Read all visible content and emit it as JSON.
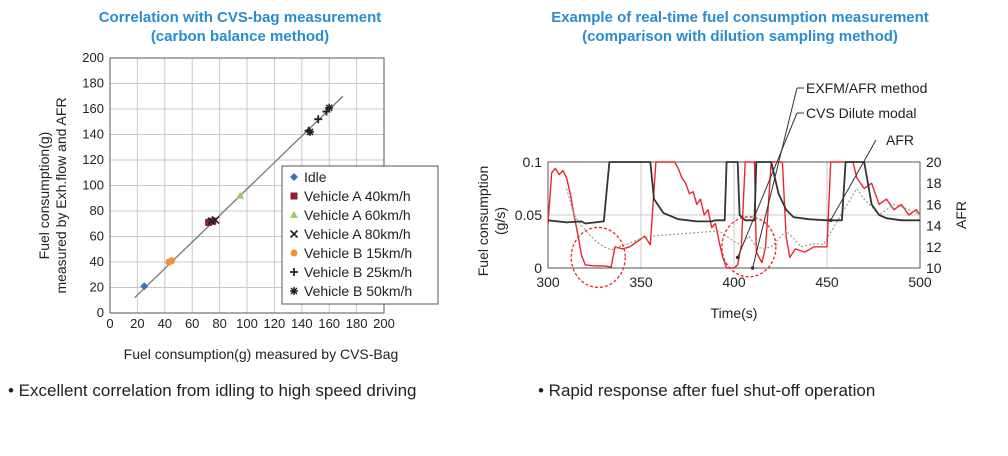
{
  "chart_data": [
    {
      "type": "scatter",
      "title_line1": "Correlation with CVS-bag measurement",
      "title_line2": "(carbon balance method)",
      "xlabel": "Fuel consumption(g) measured by CVS-Bag",
      "ylabel_line1": "Fuel consumption(g)",
      "ylabel_line2": "measured by Exh.flow and AFR",
      "xlim": [
        0,
        200
      ],
      "ylim": [
        0,
        200
      ],
      "xticks": [
        0,
        20,
        40,
        60,
        80,
        100,
        120,
        140,
        160,
        180,
        200
      ],
      "yticks": [
        0,
        20,
        40,
        60,
        80,
        100,
        120,
        140,
        160,
        180,
        200
      ],
      "grid": true,
      "legend_position": "bottom-right",
      "fit_line": [
        [
          18,
          12
        ],
        [
          170,
          170
        ]
      ],
      "series": [
        {
          "name": "Idle",
          "marker": "diamond",
          "color": "#3a6fc4",
          "points": [
            [
              25,
              21
            ]
          ]
        },
        {
          "name": "Vehicle A 40km/h",
          "marker": "square",
          "color": "#8b2230",
          "points": [
            [
              72,
              71
            ],
            [
              75,
              72
            ]
          ]
        },
        {
          "name": "Vehicle A 60km/h",
          "marker": "triangle",
          "color": "#9ccb6b",
          "points": [
            [
              95,
              92
            ]
          ]
        },
        {
          "name": "Vehicle A 80km/h",
          "marker": "x",
          "color": "#222222",
          "points": [
            [
              74,
              72
            ],
            [
              77,
              73
            ]
          ]
        },
        {
          "name": "Vehicle B 15km/h",
          "marker": "circle",
          "color": "#f0913a",
          "points": [
            [
              43,
              40
            ],
            [
              45,
              41
            ]
          ]
        },
        {
          "name": "Vehicle B 25km/h",
          "marker": "plus",
          "color": "#222222",
          "points": [
            [
              145,
              143
            ],
            [
              152,
              152
            ],
            [
              158,
              158
            ]
          ]
        },
        {
          "name": "Vehicle B 50km/h",
          "marker": "star",
          "color": "#222222",
          "points": [
            [
              146,
              142
            ],
            [
              160,
              161
            ]
          ]
        }
      ]
    },
    {
      "type": "line",
      "title_line1": "Example of real-time fuel consumption measurement",
      "title_line2": "(comparison with dilution sampling method)",
      "xlabel": "Time(s)",
      "ylabel_line1": "Fuel consumption",
      "ylabel_line2": "(g/s)",
      "y2label": "AFR",
      "xlim": [
        300,
        500
      ],
      "ylim": [
        0,
        0.1
      ],
      "y2lim": [
        10,
        20
      ],
      "xticks": [
        300,
        350,
        400,
        450,
        500
      ],
      "yticks": [
        0,
        0.05,
        0.1
      ],
      "yticklabels": [
        "0",
        "0.05",
        "0.1"
      ],
      "y2ticks": [
        10,
        12,
        14,
        16,
        18,
        20
      ],
      "grid": true,
      "annotations": [
        "EXFM/AFR method",
        "CVS Dilute modal",
        "AFR"
      ],
      "highlight_ellipses": [
        [
          327,
          0.01
        ],
        [
          408,
          0.02
        ]
      ],
      "series": [
        {
          "name": "EXFM/AFR method",
          "color": "#e8262d",
          "axis": "left",
          "points": [
            [
              300,
              0.042
            ],
            [
              302,
              0.09
            ],
            [
              304,
              0.094
            ],
            [
              306,
              0.088
            ],
            [
              308,
              0.092
            ],
            [
              310,
              0.085
            ],
            [
              312,
              0.07
            ],
            [
              314,
              0.05
            ],
            [
              316,
              0.032
            ],
            [
              318,
              0.012
            ],
            [
              320,
              0.003
            ],
            [
              325,
              0.002
            ],
            [
              330,
              0.002
            ],
            [
              334,
              0.001
            ],
            [
              336,
              0.02
            ],
            [
              340,
              0.018
            ],
            [
              344,
              0.02
            ],
            [
              348,
              0.025
            ],
            [
              352,
              0.03
            ],
            [
              355,
              0.022
            ],
            [
              358,
              0.1
            ],
            [
              368,
              0.1
            ],
            [
              370,
              0.094
            ],
            [
              372,
              0.085
            ],
            [
              374,
              0.08
            ],
            [
              376,
              0.07
            ],
            [
              378,
              0.072
            ],
            [
              380,
              0.06
            ],
            [
              382,
              0.065
            ],
            [
              384,
              0.05
            ],
            [
              386,
              0.055
            ],
            [
              388,
              0.038
            ],
            [
              390,
              0.042
            ],
            [
              392,
              0.025
            ],
            [
              394,
              0.01
            ],
            [
              396,
              0.0
            ],
            [
              398,
              0.0
            ],
            [
              400,
              0.0
            ],
            [
              402,
              0.003
            ],
            [
              404,
              0.022
            ],
            [
              406,
              0.1
            ],
            [
              411,
              0.1
            ],
            [
              412,
              0.015
            ],
            [
              415,
              0.005
            ],
            [
              417,
              0.02
            ],
            [
              420,
              0.1
            ],
            [
              426,
              0.1
            ],
            [
              428,
              0.03
            ],
            [
              430,
              0.01
            ],
            [
              433,
              0.018
            ],
            [
              438,
              0.015
            ],
            [
              443,
              0.02
            ],
            [
              450,
              0.02
            ],
            [
              452,
              0.1
            ],
            [
              464,
              0.1
            ],
            [
              466,
              0.085
            ],
            [
              470,
              0.075
            ],
            [
              474,
              0.08
            ],
            [
              478,
              0.06
            ],
            [
              482,
              0.065
            ],
            [
              486,
              0.055
            ],
            [
              490,
              0.06
            ],
            [
              494,
              0.05
            ],
            [
              498,
              0.055
            ],
            [
              500,
              0.05
            ]
          ]
        },
        {
          "name": "CVS Dilute modal",
          "color": "#9a9a9a",
          "axis": "left",
          "points": [
            [
              310,
              0.075
            ],
            [
              314,
              0.05
            ],
            [
              318,
              0.04
            ],
            [
              322,
              0.032
            ],
            [
              326,
              0.025
            ],
            [
              330,
              0.02
            ],
            [
              334,
              0.017
            ],
            [
              338,
              0.02
            ],
            [
              342,
              0.022
            ],
            [
              346,
              0.025
            ],
            [
              350,
              0.028
            ],
            [
              355,
              0.03
            ],
            [
              392,
              0.035
            ],
            [
              396,
              0.03
            ],
            [
              400,
              0.025
            ],
            [
              404,
              0.022
            ],
            [
              408,
              0.03
            ],
            [
              412,
              0.02
            ],
            [
              416,
              0.018
            ],
            [
              420,
              0.02
            ],
            [
              428,
              0.035
            ],
            [
              432,
              0.028
            ],
            [
              436,
              0.02
            ],
            [
              440,
              0.022
            ],
            [
              444,
              0.023
            ],
            [
              448,
              0.022
            ],
            [
              466,
              0.075
            ],
            [
              470,
              0.065
            ],
            [
              474,
              0.058
            ],
            [
              478,
              0.05
            ],
            [
              482,
              0.055
            ],
            [
              486,
              0.06
            ],
            [
              490,
              0.058
            ],
            [
              494,
              0.055
            ],
            [
              498,
              0.052
            ],
            [
              500,
              0.05
            ]
          ]
        },
        {
          "name": "AFR",
          "color": "#333333",
          "axis": "right",
          "points": [
            [
              300,
              14.5
            ],
            [
              310,
              14.3
            ],
            [
              318,
              14.4
            ],
            [
              320,
              14.2
            ],
            [
              330,
              14.4
            ],
            [
              333,
              20
            ],
            [
              355,
              20
            ],
            [
              357,
              16.5
            ],
            [
              362,
              15.2
            ],
            [
              370,
              14.6
            ],
            [
              380,
              14.4
            ],
            [
              388,
              14.4
            ],
            [
              390,
              14.5
            ],
            [
              395,
              14.5
            ],
            [
              396,
              20
            ],
            [
              402,
              20
            ],
            [
              403,
              15
            ],
            [
              406,
              14.5
            ],
            [
              411,
              14.5
            ],
            [
              412,
              20
            ],
            [
              420,
              20
            ],
            [
              424,
              17
            ],
            [
              428,
              15.5
            ],
            [
              432,
              14.8
            ],
            [
              440,
              14.6
            ],
            [
              450,
              14.5
            ],
            [
              452,
              14.5
            ],
            [
              458,
              14.5
            ],
            [
              460,
              20
            ],
            [
              470,
              20
            ],
            [
              474,
              16
            ],
            [
              478,
              15
            ],
            [
              482,
              14.7
            ],
            [
              490,
              14.5
            ],
            [
              500,
              14.5
            ]
          ]
        }
      ]
    }
  ],
  "bullets": {
    "left": "• Excellent correlation from idling to high speed driving",
    "right": "• Rapid response after fuel shut-off operation"
  }
}
